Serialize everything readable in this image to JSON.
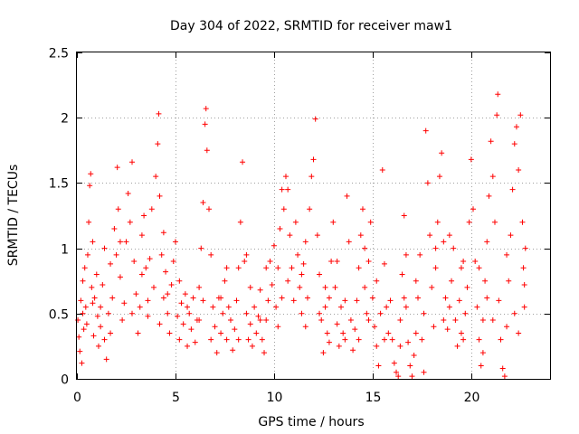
{
  "chart_data": {
    "type": "scatter",
    "title": "Day 304 of 2022, SRMTID for receiver maw1",
    "xlabel": "GPS time / hours",
    "ylabel": "SRMTID / TECUs",
    "xlim": [
      0,
      24
    ],
    "ylim": [
      0,
      2.5
    ],
    "xticks": [
      0,
      5,
      10,
      15,
      20
    ],
    "xtick_labels": [
      "0",
      "5",
      "10",
      "15",
      "20"
    ],
    "yticks": [
      0,
      0.5,
      1,
      1.5,
      2,
      2.5
    ],
    "ytick_labels": [
      "0",
      "0.5",
      "1",
      "1.5",
      "2",
      "2.5"
    ],
    "grid": true,
    "marker": "+",
    "series": [
      {
        "name": "maw1",
        "color": "#ff0000",
        "points": [
          [
            0.05,
            0.45
          ],
          [
            0.1,
            0.32
          ],
          [
            0.15,
            0.21
          ],
          [
            0.2,
            0.6
          ],
          [
            0.25,
            0.12
          ],
          [
            0.3,
            0.5
          ],
          [
            0.35,
            0.38
          ],
          [
            0.4,
            0.85
          ],
          [
            0.45,
            0.55
          ],
          [
            0.5,
            0.42
          ],
          [
            0.55,
            0.95
          ],
          [
            0.6,
            1.2
          ],
          [
            0.65,
            1.48
          ],
          [
            0.7,
            1.57
          ],
          [
            0.75,
            0.7
          ],
          [
            0.8,
            1.05
          ],
          [
            0.85,
            0.33
          ],
          [
            0.9,
            0.62
          ],
          [
            1.0,
            0.8
          ],
          [
            1.05,
            0.48
          ],
          [
            1.1,
            0.25
          ],
          [
            1.2,
            0.55
          ],
          [
            1.3,
            0.72
          ],
          [
            1.4,
            0.3
          ],
          [
            1.5,
            0.15
          ],
          [
            1.6,
            0.5
          ],
          [
            1.7,
            0.88
          ],
          [
            1.8,
            0.62
          ],
          [
            1.9,
            1.15
          ],
          [
            2.0,
            0.95
          ],
          [
            2.05,
            1.62
          ],
          [
            2.1,
            1.3
          ],
          [
            2.2,
            0.78
          ],
          [
            2.3,
            0.45
          ],
          [
            2.4,
            0.58
          ],
          [
            2.5,
            1.05
          ],
          [
            2.6,
            1.42
          ],
          [
            2.7,
            1.2
          ],
          [
            2.8,
            1.66
          ],
          [
            2.9,
            0.9
          ],
          [
            3.0,
            0.65
          ],
          [
            3.1,
            0.35
          ],
          [
            3.2,
            0.55
          ],
          [
            3.3,
            1.1
          ],
          [
            3.4,
            1.25
          ],
          [
            3.5,
            0.85
          ],
          [
            3.6,
            0.6
          ],
          [
            3.7,
            0.92
          ],
          [
            3.8,
            1.3
          ],
          [
            3.9,
            0.7
          ],
          [
            4.0,
            1.55
          ],
          [
            4.1,
            1.8
          ],
          [
            4.15,
            2.03
          ],
          [
            4.2,
            1.4
          ],
          [
            4.3,
            0.95
          ],
          [
            4.4,
            0.62
          ],
          [
            4.5,
            0.82
          ],
          [
            4.6,
            0.5
          ],
          [
            4.7,
            0.35
          ],
          [
            4.8,
            0.72
          ],
          [
            4.9,
            0.9
          ],
          [
            5.0,
            1.05
          ],
          [
            5.1,
            0.48
          ],
          [
            5.2,
            0.3
          ],
          [
            5.3,
            0.58
          ],
          [
            5.4,
            0.42
          ],
          [
            5.5,
            0.65
          ],
          [
            5.6,
            0.25
          ],
          [
            5.7,
            0.5
          ],
          [
            5.8,
            0.38
          ],
          [
            5.9,
            0.62
          ],
          [
            6.0,
            0.28
          ],
          [
            6.1,
            0.45
          ],
          [
            6.2,
            0.7
          ],
          [
            6.3,
            1.0
          ],
          [
            6.4,
            1.35
          ],
          [
            6.5,
            1.95
          ],
          [
            6.55,
            2.07
          ],
          [
            6.6,
            1.75
          ],
          [
            6.7,
            1.3
          ],
          [
            6.8,
            0.95
          ],
          [
            6.9,
            0.55
          ],
          [
            7.0,
            0.4
          ],
          [
            7.1,
            0.2
          ],
          [
            7.2,
            0.62
          ],
          [
            7.3,
            0.35
          ],
          [
            7.4,
            0.5
          ],
          [
            7.5,
            0.75
          ],
          [
            7.6,
            0.3
          ],
          [
            7.7,
            0.55
          ],
          [
            7.8,
            0.45
          ],
          [
            7.9,
            0.22
          ],
          [
            8.0,
            0.38
          ],
          [
            8.1,
            0.6
          ],
          [
            8.2,
            0.85
          ],
          [
            8.3,
            1.2
          ],
          [
            8.4,
            1.66
          ],
          [
            8.5,
            0.9
          ],
          [
            8.6,
            0.5
          ],
          [
            8.7,
            0.3
          ],
          [
            8.8,
            0.42
          ],
          [
            8.9,
            0.25
          ],
          [
            9.0,
            0.55
          ],
          [
            9.1,
            0.35
          ],
          [
            9.2,
            0.48
          ],
          [
            9.3,
            0.68
          ],
          [
            9.4,
            0.3
          ],
          [
            9.5,
            0.2
          ],
          [
            9.6,
            0.45
          ],
          [
            9.7,
            0.6
          ],
          [
            9.8,
            0.9
          ],
          [
            9.9,
            0.72
          ],
          [
            10.0,
            1.02
          ],
          [
            10.1,
            0.55
          ],
          [
            10.2,
            0.85
          ],
          [
            10.3,
            1.15
          ],
          [
            10.4,
            0.62
          ],
          [
            10.5,
            1.3
          ],
          [
            10.6,
            1.55
          ],
          [
            10.7,
            1.45
          ],
          [
            10.8,
            1.1
          ],
          [
            10.9,
            0.85
          ],
          [
            11.0,
            0.6
          ],
          [
            11.1,
            1.2
          ],
          [
            11.2,
            0.95
          ],
          [
            11.3,
            0.7
          ],
          [
            11.4,
            0.5
          ],
          [
            11.5,
            0.88
          ],
          [
            11.6,
            1.05
          ],
          [
            11.7,
            0.62
          ],
          [
            11.8,
            1.3
          ],
          [
            11.9,
            1.55
          ],
          [
            12.0,
            1.68
          ],
          [
            12.1,
            1.99
          ],
          [
            12.2,
            1.1
          ],
          [
            12.3,
            0.8
          ],
          [
            12.4,
            0.45
          ],
          [
            12.5,
            0.2
          ],
          [
            12.6,
            0.55
          ],
          [
            12.7,
            0.35
          ],
          [
            12.8,
            0.62
          ],
          [
            12.9,
            0.9
          ],
          [
            13.0,
            1.2
          ],
          [
            13.1,
            0.7
          ],
          [
            13.2,
            0.42
          ],
          [
            13.3,
            0.25
          ],
          [
            13.4,
            0.55
          ],
          [
            13.5,
            0.35
          ],
          [
            13.6,
            0.6
          ],
          [
            13.7,
            1.4
          ],
          [
            13.8,
            1.05
          ],
          [
            13.9,
            0.45
          ],
          [
            14.0,
            0.22
          ],
          [
            14.1,
            0.38
          ],
          [
            14.2,
            0.6
          ],
          [
            14.3,
            0.85
          ],
          [
            14.4,
            1.1
          ],
          [
            14.5,
            1.3
          ],
          [
            14.6,
            0.7
          ],
          [
            14.7,
            0.5
          ],
          [
            14.8,
            0.9
          ],
          [
            14.9,
            1.2
          ],
          [
            15.0,
            0.62
          ],
          [
            15.1,
            0.4
          ],
          [
            15.2,
            0.25
          ],
          [
            15.3,
            0.1
          ],
          [
            15.4,
            0.5
          ],
          [
            15.5,
            1.6
          ],
          [
            15.6,
            0.88
          ],
          [
            15.7,
            0.55
          ],
          [
            15.8,
            0.35
          ],
          [
            15.9,
            0.6
          ],
          [
            16.0,
            0.3
          ],
          [
            16.1,
            0.12
          ],
          [
            16.2,
            0.05
          ],
          [
            16.3,
            0.02
          ],
          [
            16.4,
            0.45
          ],
          [
            16.5,
            0.8
          ],
          [
            16.6,
            1.25
          ],
          [
            16.7,
            0.55
          ],
          [
            16.8,
            0.28
          ],
          [
            16.9,
            0.1
          ],
          [
            17.0,
            0.02
          ],
          [
            17.1,
            0.18
          ],
          [
            17.2,
            0.35
          ],
          [
            17.3,
            0.62
          ],
          [
            17.4,
            0.95
          ],
          [
            17.5,
            0.3
          ],
          [
            17.6,
            0.05
          ],
          [
            17.7,
            1.9
          ],
          [
            17.8,
            1.5
          ],
          [
            17.9,
            1.1
          ],
          [
            18.0,
            0.7
          ],
          [
            18.1,
            0.4
          ],
          [
            18.2,
            0.85
          ],
          [
            18.3,
            1.2
          ],
          [
            18.4,
            1.55
          ],
          [
            18.5,
            1.73
          ],
          [
            18.6,
            1.05
          ],
          [
            18.7,
            0.62
          ],
          [
            18.8,
            0.38
          ],
          [
            18.9,
            0.55
          ],
          [
            19.0,
            0.75
          ],
          [
            19.1,
            1.0
          ],
          [
            19.2,
            0.45
          ],
          [
            19.3,
            0.25
          ],
          [
            19.4,
            0.6
          ],
          [
            19.5,
            0.85
          ],
          [
            19.6,
            0.3
          ],
          [
            19.7,
            0.5
          ],
          [
            19.8,
            0.7
          ],
          [
            19.9,
            1.2
          ],
          [
            20.0,
            1.68
          ],
          [
            20.1,
            1.3
          ],
          [
            20.2,
            0.9
          ],
          [
            20.3,
            0.55
          ],
          [
            20.4,
            0.3
          ],
          [
            20.5,
            0.1
          ],
          [
            20.6,
            0.45
          ],
          [
            20.7,
            0.75
          ],
          [
            20.8,
            1.05
          ],
          [
            20.9,
            1.4
          ],
          [
            21.0,
            1.82
          ],
          [
            21.1,
            1.55
          ],
          [
            21.2,
            1.2
          ],
          [
            21.3,
            2.02
          ],
          [
            21.35,
            2.18
          ],
          [
            21.4,
            0.6
          ],
          [
            21.5,
            0.3
          ],
          [
            21.6,
            0.08
          ],
          [
            21.7,
            0.02
          ],
          [
            21.8,
            0.4
          ],
          [
            21.9,
            0.75
          ],
          [
            22.0,
            1.1
          ],
          [
            22.1,
            1.45
          ],
          [
            22.2,
            1.8
          ],
          [
            22.3,
            1.93
          ],
          [
            22.4,
            1.6
          ],
          [
            22.5,
            2.02
          ],
          [
            22.6,
            1.2
          ],
          [
            22.65,
            0.85
          ],
          [
            22.7,
            0.55
          ],
          [
            22.75,
            1.0
          ],
          [
            0.3,
            0.75
          ],
          [
            1.2,
            0.4
          ],
          [
            2.2,
            1.05
          ],
          [
            3.3,
            0.8
          ],
          [
            4.4,
            1.12
          ],
          [
            5.2,
            0.75
          ],
          [
            6.2,
            0.45
          ],
          [
            7.3,
            0.62
          ],
          [
            8.2,
            0.3
          ],
          [
            9.3,
            0.45
          ],
          [
            10.2,
            0.4
          ],
          [
            11.4,
            0.8
          ],
          [
            12.6,
            0.7
          ],
          [
            13.2,
            0.9
          ],
          [
            14.3,
            0.3
          ],
          [
            15.2,
            0.75
          ],
          [
            16.4,
            0.25
          ],
          [
            17.2,
            0.75
          ],
          [
            18.6,
            0.45
          ],
          [
            19.5,
            0.35
          ],
          [
            20.8,
            0.62
          ],
          [
            21.8,
            0.95
          ],
          [
            22.2,
            0.5
          ],
          [
            1.7,
            0.35
          ],
          [
            2.8,
            0.5
          ],
          [
            4.6,
            0.65
          ],
          [
            6.8,
            0.3
          ],
          [
            8.8,
            0.7
          ],
          [
            10.7,
            0.75
          ],
          [
            12.3,
            0.5
          ],
          [
            14.6,
            1.0
          ],
          [
            16.7,
            0.95
          ],
          [
            18.2,
            1.0
          ],
          [
            20.4,
            0.85
          ],
          [
            21.1,
            0.45
          ],
          [
            0.8,
            0.58
          ],
          [
            3.6,
            0.48
          ],
          [
            5.6,
            0.55
          ],
          [
            7.6,
            0.85
          ],
          [
            9.6,
            0.85
          ],
          [
            11.6,
            0.4
          ],
          [
            13.6,
            0.3
          ],
          [
            15.6,
            0.3
          ],
          [
            17.6,
            0.5
          ],
          [
            19.6,
            0.9
          ],
          [
            22.7,
            0.72
          ],
          [
            1.4,
            1.0
          ],
          [
            4.2,
            0.42
          ],
          [
            6.4,
            0.6
          ],
          [
            8.6,
            0.95
          ],
          [
            10.4,
            1.45
          ],
          [
            12.8,
            0.28
          ],
          [
            14.8,
            0.45
          ],
          [
            16.6,
            0.62
          ],
          [
            18.9,
            1.1
          ],
          [
            20.6,
            0.2
          ],
          [
            22.4,
            0.35
          ]
        ]
      }
    ]
  }
}
